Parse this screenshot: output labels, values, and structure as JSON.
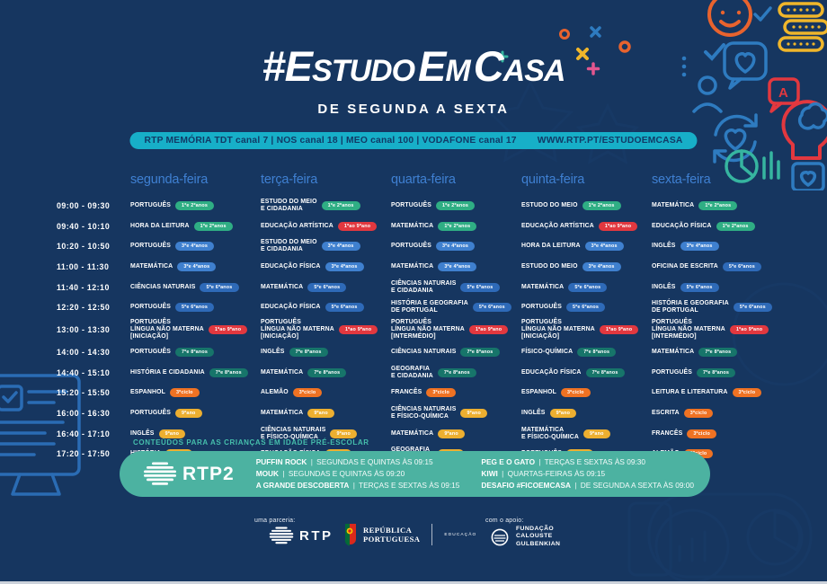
{
  "header": {
    "title_parts": {
      "t1": "#E",
      "t2": "STUDO",
      "t3": "E",
      "t4": "M",
      "t5": "C",
      "t6": "ASA"
    },
    "subtitle": "DE SEGUNDA A SEXTA",
    "channels": "RTP MEMÓRIA  TDT canal 7 | NOS canal 18 | MEO canal 100 | VODAFONE canal 17",
    "website": "WWW.RTP.PT/ESTUDOEMCASA",
    "accent_color": "#17afc8"
  },
  "schedule": {
    "days": [
      "segunda-feira",
      "terça-feira",
      "quarta-feira",
      "quinta-feira",
      "sexta-feira"
    ],
    "grades": {
      "g12": {
        "label": "1ºe 2ºanos",
        "color": "#2fae84"
      },
      "g34": {
        "label": "3ºe 4ºanos",
        "color": "#3f80cf"
      },
      "g56": {
        "label": "5ºe 6ºanos",
        "color": "#2e6ab8"
      },
      "g19": {
        "label": "1ºao 9ºano",
        "color": "#e2383f"
      },
      "g78": {
        "label": "7ºe 8ºanos",
        "color": "#17756a"
      },
      "c3": {
        "label": "3ºciclo",
        "color": "#ef7223"
      },
      "g9": {
        "label": "9ºano",
        "color": "#edaf30"
      }
    },
    "rows": [
      {
        "time": "09:00 - 09:30",
        "cells": [
          {
            "subject": "PORTUGUÊS",
            "grade": "g12"
          },
          {
            "subject": "ESTUDO DO MEIO\nE CIDADANIA",
            "grade": "g12"
          },
          {
            "subject": "PORTUGUÊS",
            "grade": "g12"
          },
          {
            "subject": "ESTUDO DO MEIO",
            "grade": "g12"
          },
          {
            "subject": "MATEMÁTICA",
            "grade": "g12"
          }
        ]
      },
      {
        "time": "09:40 - 10:10",
        "cells": [
          {
            "subject": "HORA DA LEITURA",
            "grade": "g12"
          },
          {
            "subject": "EDUCAÇÃO ARTÍSTICA",
            "grade": "g19"
          },
          {
            "subject": "MATEMÁTICA",
            "grade": "g12"
          },
          {
            "subject": "EDUCAÇÃO ARTÍSTICA",
            "grade": "g19"
          },
          {
            "subject": "EDUCAÇÃO FÍSICA",
            "grade": "g12"
          }
        ]
      },
      {
        "time": "10:20 - 10:50",
        "cells": [
          {
            "subject": "PORTUGUÊS",
            "grade": "g34"
          },
          {
            "subject": "ESTUDO DO MEIO\nE CIDADANIA",
            "grade": "g34"
          },
          {
            "subject": "PORTUGUÊS",
            "grade": "g34"
          },
          {
            "subject": "HORA DA LEITURA",
            "grade": "g34"
          },
          {
            "subject": "INGLÊS",
            "grade": "g34"
          }
        ]
      },
      {
        "time": "11:00 - 11:30",
        "cells": [
          {
            "subject": "MATEMÁTICA",
            "grade": "g34"
          },
          {
            "subject": "EDUCAÇÃO FÍSICA",
            "grade": "g34"
          },
          {
            "subject": "MATEMÁTICA",
            "grade": "g34"
          },
          {
            "subject": "ESTUDO DO MEIO",
            "grade": "g34"
          },
          {
            "subject": "OFICINA DE ESCRITA",
            "grade": "g56"
          }
        ]
      },
      {
        "time": "11:40 - 12:10",
        "cells": [
          {
            "subject": "CIÊNCIAS NATURAIS",
            "grade": "g56"
          },
          {
            "subject": "MATEMÁTICA",
            "grade": "g56"
          },
          {
            "subject": "CIÊNCIAS NATURAIS\nE CIDADANIA",
            "grade": "g56"
          },
          {
            "subject": "MATEMÁTICA",
            "grade": "g56"
          },
          {
            "subject": "INGLÊS",
            "grade": "g56"
          }
        ]
      },
      {
        "time": "12:20 - 12:50",
        "cells": [
          {
            "subject": "PORTUGUÊS",
            "grade": "g56"
          },
          {
            "subject": "EDUCAÇÃO FÍSICA",
            "grade": "g56"
          },
          {
            "subject": "HISTÓRIA E GEOGRAFIA\nDE PORTUGAL",
            "grade": "g56"
          },
          {
            "subject": "PORTUGUÊS",
            "grade": "g56"
          },
          {
            "subject": "HISTÓRIA E GEOGRAFIA\nDE PORTUGAL",
            "grade": "g56"
          }
        ]
      },
      {
        "time": "13:00 - 13:30",
        "cells": [
          {
            "subject": "PORTUGUÊS\nLÍNGUA NÃO MATERNA\n[INICIAÇÃO]",
            "grade": "g19"
          },
          {
            "subject": "PORTUGUÊS\nLÍNGUA NÃO MATERNA\n[INICIAÇÃO]",
            "grade": "g19"
          },
          {
            "subject": "PORTUGUÊS\nLÍNGUA NÃO MATERNA\n[INTERMÉDIO]",
            "grade": "g19"
          },
          {
            "subject": "PORTUGUÊS\nLÍNGUA NÃO MATERNA\n[INICIAÇÃO]",
            "grade": "g19"
          },
          {
            "subject": "PORTUGUÊS\nLÍNGUA NÃO MATERNA\n[INTERMÉDIO]",
            "grade": "g19"
          }
        ]
      },
      {
        "time": "14:00 - 14:30",
        "cells": [
          {
            "subject": "PORTUGUÊS",
            "grade": "g78"
          },
          {
            "subject": "INGLÊS",
            "grade": "g78"
          },
          {
            "subject": "CIÊNCIAS NATURAIS",
            "grade": "g78"
          },
          {
            "subject": "FÍSICO-QUÍMICA",
            "grade": "g78"
          },
          {
            "subject": "MATEMÁTICA",
            "grade": "g78"
          }
        ]
      },
      {
        "time": "14:40 - 15:10",
        "cells": [
          {
            "subject": "HISTÓRIA E CIDADANIA",
            "grade": "g78"
          },
          {
            "subject": "MATEMÁTICA",
            "grade": "g78"
          },
          {
            "subject": "GEOGRAFIA\nE CIDADANIA",
            "grade": "g78"
          },
          {
            "subject": "EDUCAÇÃO FÍSICA",
            "grade": "g78"
          },
          {
            "subject": "PORTUGUÊS",
            "grade": "g78"
          }
        ]
      },
      {
        "time": "15:20 - 15:50",
        "cells": [
          {
            "subject": "ESPANHOL",
            "grade": "c3"
          },
          {
            "subject": "ALEMÃO",
            "grade": "c3"
          },
          {
            "subject": "FRANCÊS",
            "grade": "c3"
          },
          {
            "subject": "ESPANHOL",
            "grade": "c3"
          },
          {
            "subject": "LEITURA E LITERATURA",
            "grade": "c3"
          }
        ]
      },
      {
        "time": "16:00 - 16:30",
        "cells": [
          {
            "subject": "PORTUGUÊS",
            "grade": "g9"
          },
          {
            "subject": "MATEMÁTICA",
            "grade": "g9"
          },
          {
            "subject": "CIÊNCIAS NATURAIS\nE FÍSICO-QUÍMICA",
            "grade": "g9"
          },
          {
            "subject": "INGLÊS",
            "grade": "g9"
          },
          {
            "subject": "ESCRITA",
            "grade": "c3"
          }
        ]
      },
      {
        "time": "16:40 - 17:10",
        "cells": [
          {
            "subject": "INGLÊS",
            "grade": "g9"
          },
          {
            "subject": "CIÊNCIAS NATURAIS\nE FÍSICO-QUÍMICA",
            "grade": "g9"
          },
          {
            "subject": "MATEMÁTICA",
            "grade": "g9"
          },
          {
            "subject": "MATEMÁTICA\nE FÍSICO-QUÍMICA",
            "grade": "g9"
          },
          {
            "subject": "FRANCÊS",
            "grade": "c3"
          }
        ]
      },
      {
        "time": "17:20 - 17:50",
        "cells": [
          {
            "subject": "HISTÓRIA",
            "grade": "g9"
          },
          {
            "subject": "EDUCAÇÃO FÍSICA",
            "grade": "g9"
          },
          {
            "subject": "GEOGRAFIA\nE CIDADANIA",
            "grade": "g9"
          },
          {
            "subject": "PORTUGUÊS",
            "grade": "g9"
          },
          {
            "subject": "ALEMÃO",
            "grade": "c3"
          }
        ]
      }
    ]
  },
  "preschool": {
    "label": "CONTEÚDOS PARA AS CRIANÇAS EM IDADE PRÉ-ESCOLAR",
    "banner_color": "#4cb2a1",
    "channel_name": "RTP2",
    "programs_left": [
      {
        "title": "PUFFIN ROCK",
        "info": "SEGUNDAS E QUINTAS ÀS 09:15"
      },
      {
        "title": "MOUK",
        "info": "SEGUNDAS E QUINTAS ÀS 09:20"
      },
      {
        "title": "A GRANDE DESCOBERTA",
        "info": "TERÇAS E SEXTAS ÀS 09:15"
      }
    ],
    "programs_right": [
      {
        "title": "PEG E O GATO",
        "info": "TERÇAS E SEXTAS ÀS 09:30"
      },
      {
        "title": "KIWI",
        "info": "QUARTAS-FEIRAS ÀS 09:15"
      },
      {
        "title": "DESAFIO #FICOEMCASA",
        "info": "DE SEGUNDA A SEXTA ÀS 09:00"
      }
    ]
  },
  "footer": {
    "partnership_label": "uma parceria:",
    "rtp_name": "RTP",
    "republica_name": "REPÚBLICA\nPORTUGUESA",
    "educacao_label": "EDUCAÇÃO",
    "support_label": "com o apoio:",
    "gulbenkian_name": "FUNDAÇÃO\nCALOUSTE\nGULBENKIAN"
  }
}
